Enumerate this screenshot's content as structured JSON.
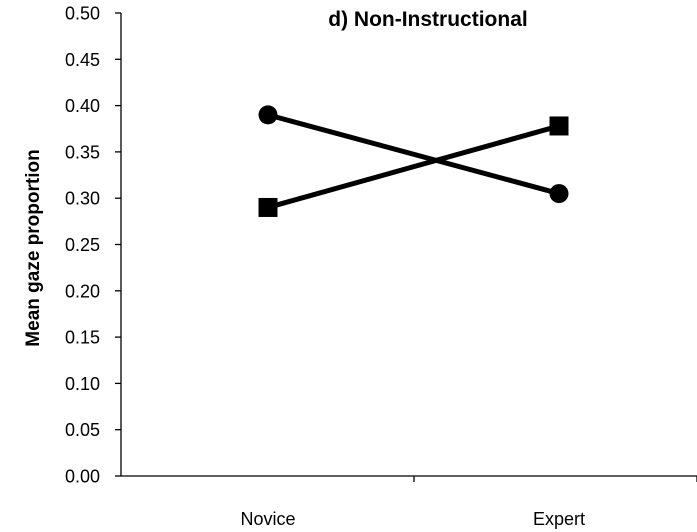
{
  "chart_data": {
    "type": "line",
    "title": "d) Non-Instructional",
    "xlabel": "",
    "ylabel": "Mean gaze proportion",
    "categories": [
      "Novice",
      "Expert"
    ],
    "ylim": [
      0,
      0.5
    ],
    "yticks": [
      "0.00",
      "0.05",
      "0.10",
      "0.15",
      "0.20",
      "0.25",
      "0.30",
      "0.35",
      "0.40",
      "0.45",
      "0.50"
    ],
    "grid": false,
    "legend": "none",
    "series": [
      {
        "marker": "circle",
        "color": "#000000",
        "values": [
          0.39,
          0.305
        ]
      },
      {
        "marker": "square",
        "color": "#000000",
        "values": [
          0.29,
          0.378
        ]
      }
    ]
  }
}
